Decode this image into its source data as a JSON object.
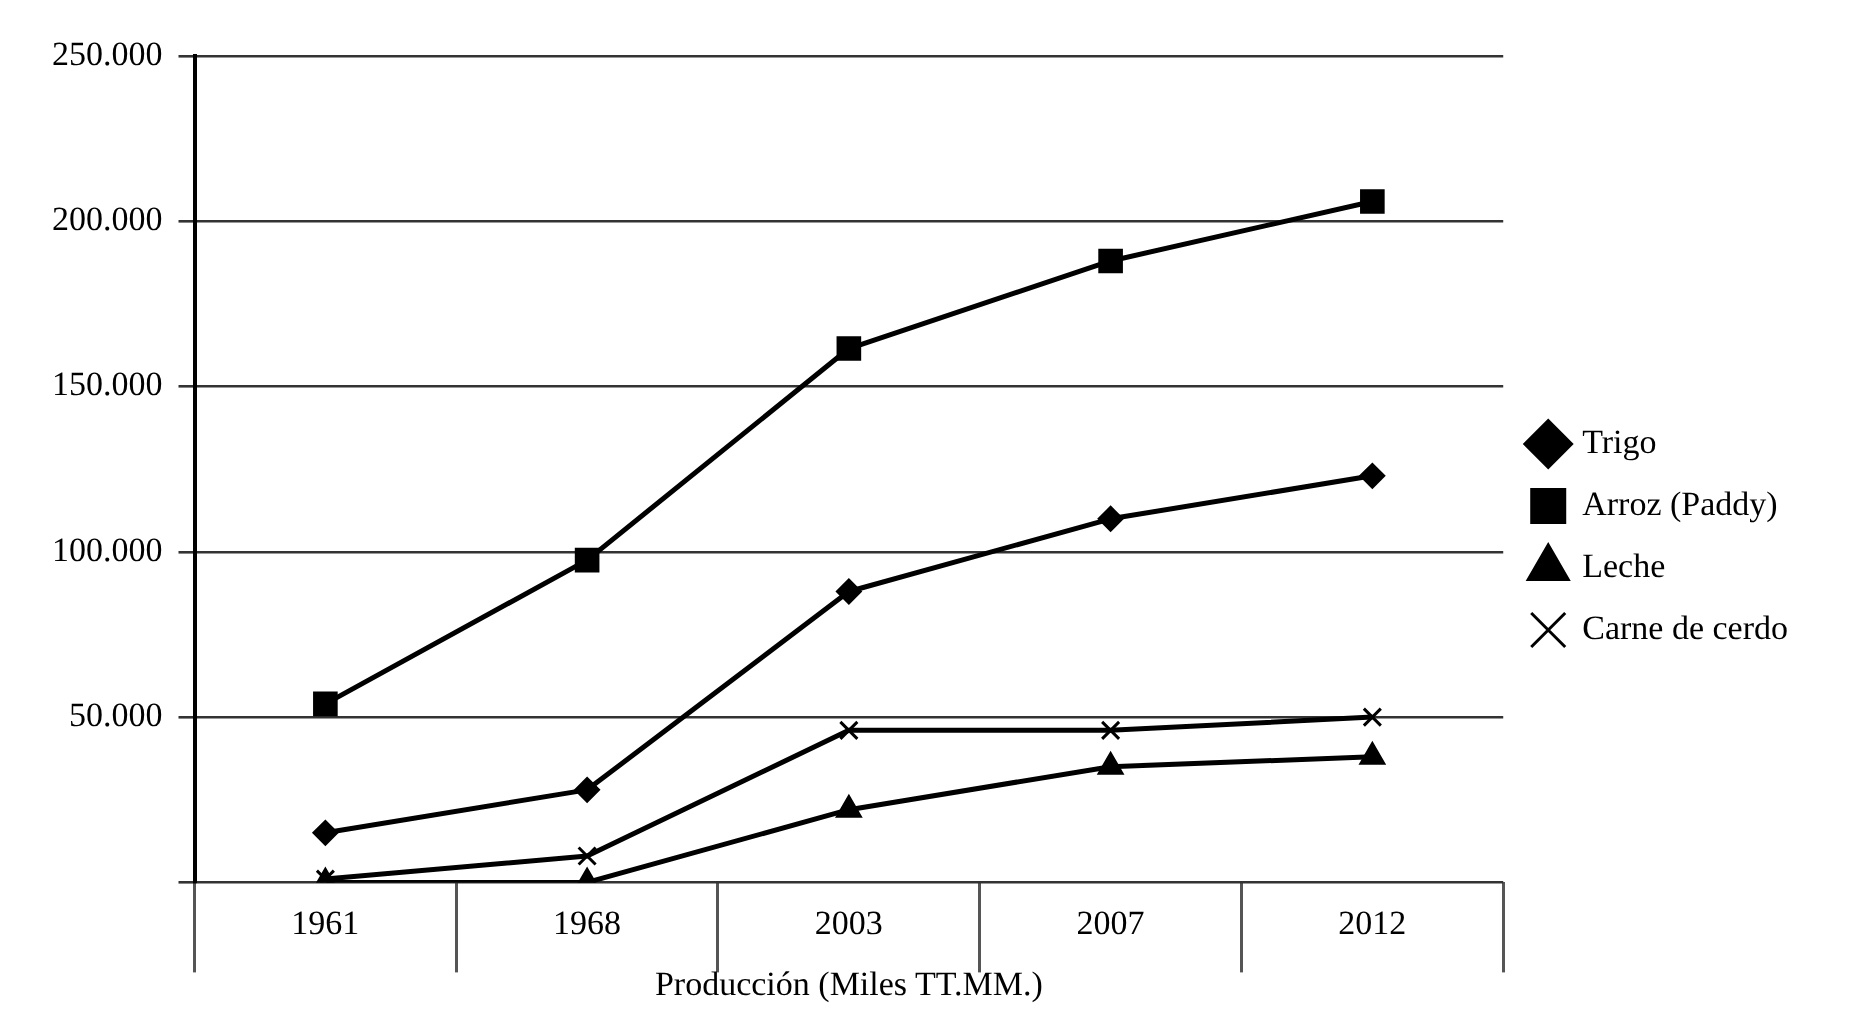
{
  "chart_data": {
    "type": "line",
    "xlabel": "Producción (Miles TT.MM.)",
    "categories": [
      "1961",
      "1968",
      "2003",
      "2007",
      "2012"
    ],
    "series": [
      {
        "name": "Trigo",
        "color": "#000000",
        "marker": "diamond",
        "values": [
          15000,
          28000,
          88000,
          110000,
          123000
        ]
      },
      {
        "name": "Arroz (Paddy)",
        "color": "#000000",
        "marker": "square",
        "values": [
          54000,
          97500,
          161500,
          188000,
          206000
        ]
      },
      {
        "name": "Leche",
        "color": "#000000",
        "marker": "triangle",
        "values": [
          0,
          0,
          22000,
          35000,
          38000
        ]
      },
      {
        "name": "Carne de cerdo",
        "color": "#000000",
        "marker": "cross",
        "values": [
          1000,
          8000,
          46000,
          46000,
          50000
        ]
      }
    ],
    "ylim": [
      0,
      250000
    ],
    "yticks": [
      {
        "value": 0,
        "label": null
      },
      {
        "value": 50000,
        "label": "50.000"
      },
      {
        "value": 100000,
        "label": "100.000"
      },
      {
        "value": 150000,
        "label": "150.000"
      },
      {
        "value": 200000,
        "label": "200.000"
      },
      {
        "value": 250000,
        "label": "250.000"
      }
    ],
    "grid": "y",
    "legend": "right"
  }
}
